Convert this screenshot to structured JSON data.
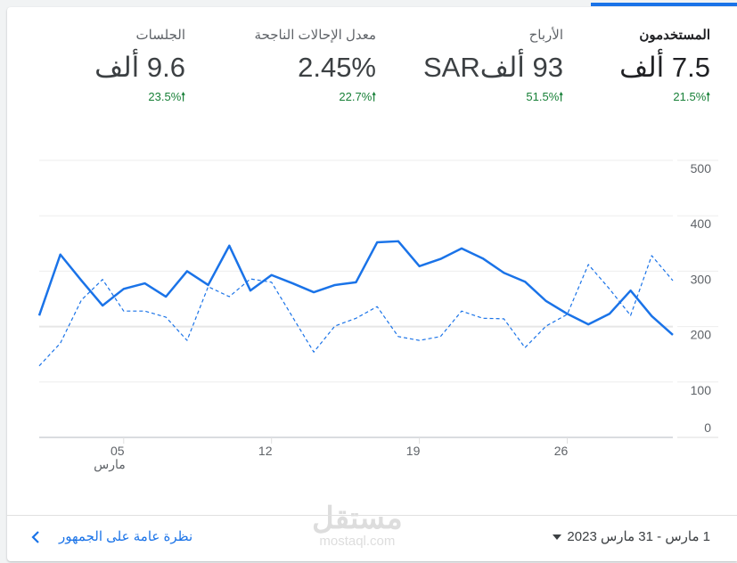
{
  "metrics": [
    {
      "label": "المستخدمون",
      "value": "7.5 ألف",
      "change": "21.5%",
      "active": true
    },
    {
      "label": "الأرباح",
      "value": "93 ألفSAR",
      "change": "51.5%",
      "active": false
    },
    {
      "label": "معدل الإحالات الناجحة",
      "value": "2.45%",
      "change": "22.7%",
      "active": false
    },
    {
      "label": "الجلسات",
      "value": "9.6 ألف",
      "change": "23.5%",
      "active": false
    }
  ],
  "accent": "#1a73e8",
  "positive_color": "#188038",
  "chart_data": {
    "type": "line",
    "x": [
      1,
      2,
      3,
      4,
      5,
      6,
      7,
      8,
      9,
      10,
      11,
      12,
      13,
      14,
      15,
      16,
      17,
      18,
      19,
      20,
      21,
      22,
      23,
      24,
      25,
      26,
      27,
      28,
      29,
      30,
      31
    ],
    "xticks": [
      "05",
      "12",
      "19",
      "26"
    ],
    "xtick_days": [
      5,
      12,
      19,
      26
    ],
    "xsublabel": "مارس",
    "yticks": [
      "0",
      "100",
      "200",
      "300",
      "400",
      "500"
    ],
    "ylim": [
      0,
      500
    ],
    "grid": true,
    "series": [
      {
        "style": "solid",
        "values": [
          220,
          330,
          283,
          238,
          268,
          278,
          254,
          300,
          275,
          346,
          265,
          293,
          278,
          262,
          275,
          280,
          352,
          354,
          309,
          322,
          341,
          323,
          297,
          281,
          246,
          223,
          204,
          223,
          265,
          219,
          185
        ]
      },
      {
        "style": "dashed",
        "values": [
          129,
          170,
          248,
          285,
          228,
          228,
          217,
          175,
          272,
          254,
          286,
          280,
          217,
          154,
          201,
          215,
          236,
          182,
          175,
          182,
          228,
          215,
          214,
          162,
          201,
          222,
          312,
          268,
          220,
          328,
          283
        ]
      }
    ]
  },
  "footer": {
    "date_range": "1 مارس - 31 مارس 2023",
    "link": "نظرة عامة على الجمهور"
  },
  "watermark": {
    "arabic": "مستقل",
    "latin": "mostaql.com"
  }
}
